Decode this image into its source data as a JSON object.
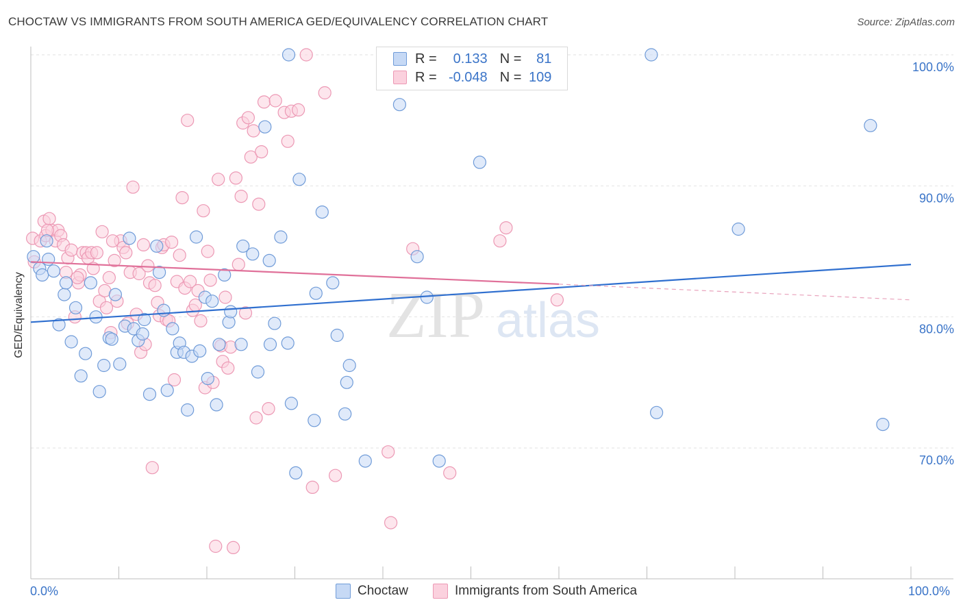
{
  "title": "CHOCTAW VS IMMIGRANTS FROM SOUTH AMERICA GED/EQUIVALENCY CORRELATION CHART",
  "source": "Source: ZipAtlas.com",
  "watermark": {
    "zip": "ZIP",
    "atlas": "atlas"
  },
  "legend": {
    "r_label": "R =",
    "n_label": "N =",
    "rows": [
      {
        "name": "Choctaw",
        "r": "0.133",
        "n": "81",
        "color": "#6f9bd8"
      },
      {
        "name": "Immigrants from South America",
        "r": "-0.048",
        "n": "109",
        "color": "#ec98b4"
      }
    ]
  },
  "chart_data": {
    "type": "scatter",
    "title": "CHOCTAW VS IMMIGRANTS FROM SOUTH AMERICA GED/EQUIVALENCY CORRELATION CHART",
    "xlabel": "",
    "ylabel": "GED/Equivalency",
    "xlim": [
      0,
      100
    ],
    "ylim": [
      60,
      101
    ],
    "x_tick_labels": [
      "0.0%",
      "100.0%"
    ],
    "y_ticks": [
      70,
      80,
      90,
      100
    ],
    "y_tick_labels": [
      "70.0%",
      "80.0%",
      "90.0%",
      "100.0%"
    ],
    "grid": true,
    "series": [
      {
        "name": "Choctaw",
        "color": "#6f9bd8",
        "fill": "#c6d9f5",
        "trend": {
          "x": [
            0,
            100
          ],
          "y": [
            79.6,
            84.0
          ]
        },
        "points": [
          [
            0.3,
            84.6
          ],
          [
            1.0,
            83.7
          ],
          [
            1.3,
            83.2
          ],
          [
            1.8,
            85.8
          ],
          [
            2.0,
            84.4
          ],
          [
            2.6,
            83.5
          ],
          [
            3.2,
            79.4
          ],
          [
            3.8,
            81.7
          ],
          [
            4.0,
            82.6
          ],
          [
            4.6,
            78.1
          ],
          [
            5.1,
            80.7
          ],
          [
            5.7,
            75.5
          ],
          [
            6.2,
            77.2
          ],
          [
            6.8,
            82.6
          ],
          [
            7.4,
            80.0
          ],
          [
            7.8,
            74.3
          ],
          [
            8.3,
            76.3
          ],
          [
            8.9,
            78.4
          ],
          [
            9.2,
            78.3
          ],
          [
            9.6,
            81.7
          ],
          [
            10.1,
            76.4
          ],
          [
            10.7,
            79.3
          ],
          [
            11.2,
            86.0
          ],
          [
            11.7,
            79.1
          ],
          [
            12.2,
            78.2
          ],
          [
            12.7,
            78.7
          ],
          [
            12.9,
            79.8
          ],
          [
            13.5,
            74.1
          ],
          [
            14.3,
            85.4
          ],
          [
            14.6,
            83.4
          ],
          [
            15.1,
            80.5
          ],
          [
            15.5,
            74.4
          ],
          [
            16.1,
            79.1
          ],
          [
            16.6,
            77.3
          ],
          [
            16.9,
            78.0
          ],
          [
            17.4,
            77.3
          ],
          [
            17.8,
            72.9
          ],
          [
            18.3,
            77.0
          ],
          [
            18.8,
            86.1
          ],
          [
            19.2,
            77.4
          ],
          [
            19.8,
            81.5
          ],
          [
            20.1,
            75.3
          ],
          [
            20.6,
            81.2
          ],
          [
            21.1,
            73.3
          ],
          [
            21.4,
            77.9
          ],
          [
            22.0,
            83.2
          ],
          [
            22.5,
            79.6
          ],
          [
            22.7,
            80.4
          ],
          [
            23.9,
            77.9
          ],
          [
            24.1,
            85.4
          ],
          [
            25.2,
            84.8
          ],
          [
            25.8,
            75.8
          ],
          [
            26.6,
            94.5
          ],
          [
            27.1,
            84.3
          ],
          [
            27.7,
            79.5
          ],
          [
            27.2,
            77.9
          ],
          [
            28.4,
            86.1
          ],
          [
            29.2,
            78.0
          ],
          [
            29.3,
            100.0
          ],
          [
            29.6,
            73.4
          ],
          [
            30.1,
            68.1
          ],
          [
            30.5,
            90.5
          ],
          [
            32.2,
            72.1
          ],
          [
            32.4,
            81.8
          ],
          [
            33.1,
            88.0
          ],
          [
            34.3,
            82.6
          ],
          [
            34.8,
            78.6
          ],
          [
            35.7,
            72.6
          ],
          [
            35.9,
            75.0
          ],
          [
            36.2,
            76.3
          ],
          [
            38.0,
            69.0
          ],
          [
            43.9,
            84.6
          ],
          [
            45.0,
            81.5
          ],
          [
            46.4,
            69.0
          ],
          [
            51.0,
            91.8
          ],
          [
            71.1,
            72.7
          ],
          [
            80.4,
            86.7
          ],
          [
            95.4,
            94.6
          ],
          [
            96.8,
            71.8
          ],
          [
            70.5,
            100.0
          ],
          [
            41.9,
            96.2
          ]
        ]
      },
      {
        "name": "Immigrants from South America",
        "color": "#ec98b4",
        "fill": "#fbd1de",
        "trend": {
          "x": [
            0,
            60
          ],
          "y": [
            84.2,
            82.5
          ]
        },
        "trend_dashed": {
          "x": [
            60,
            100
          ],
          "y": [
            82.5,
            81.3
          ]
        },
        "points": [
          [
            0.2,
            86.0
          ],
          [
            0.4,
            84.2
          ],
          [
            1.1,
            85.8
          ],
          [
            1.5,
            87.3
          ],
          [
            1.7,
            86.2
          ],
          [
            2.1,
            87.5
          ],
          [
            2.4,
            86.6
          ],
          [
            2.8,
            85.8
          ],
          [
            3.1,
            86.6
          ],
          [
            3.4,
            86.2
          ],
          [
            3.7,
            85.5
          ],
          [
            4.0,
            83.4
          ],
          [
            4.2,
            84.5
          ],
          [
            4.6,
            85.1
          ],
          [
            5.0,
            80.0
          ],
          [
            5.4,
            82.6
          ],
          [
            5.6,
            83.2
          ],
          [
            5.9,
            84.9
          ],
          [
            6.3,
            84.9
          ],
          [
            6.5,
            84.5
          ],
          [
            6.9,
            84.9
          ],
          [
            7.1,
            83.7
          ],
          [
            7.5,
            84.9
          ],
          [
            7.8,
            81.2
          ],
          [
            8.1,
            86.5
          ],
          [
            8.4,
            82.0
          ],
          [
            8.6,
            80.7
          ],
          [
            8.9,
            83.0
          ],
          [
            9.1,
            78.8
          ],
          [
            9.5,
            84.3
          ],
          [
            9.8,
            81.2
          ],
          [
            10.2,
            85.8
          ],
          [
            10.5,
            85.3
          ],
          [
            10.8,
            84.9
          ],
          [
            11.0,
            79.5
          ],
          [
            11.3,
            83.4
          ],
          [
            11.6,
            89.9
          ],
          [
            12.0,
            80.2
          ],
          [
            12.3,
            83.3
          ],
          [
            12.5,
            77.3
          ],
          [
            12.8,
            85.5
          ],
          [
            13.0,
            77.9
          ],
          [
            13.3,
            83.9
          ],
          [
            13.5,
            82.6
          ],
          [
            13.8,
            68.5
          ],
          [
            14.1,
            82.4
          ],
          [
            14.4,
            81.1
          ],
          [
            14.6,
            80.1
          ],
          [
            14.9,
            85.3
          ],
          [
            15.1,
            85.5
          ],
          [
            15.4,
            79.8
          ],
          [
            15.7,
            79.7
          ],
          [
            16.0,
            85.7
          ],
          [
            16.3,
            75.2
          ],
          [
            16.6,
            82.7
          ],
          [
            16.9,
            84.7
          ],
          [
            17.2,
            89.1
          ],
          [
            17.5,
            82.2
          ],
          [
            17.8,
            95.0
          ],
          [
            18.1,
            82.7
          ],
          [
            18.4,
            80.5
          ],
          [
            18.7,
            80.9
          ],
          [
            19.0,
            82.0
          ],
          [
            19.3,
            79.7
          ],
          [
            19.6,
            88.1
          ],
          [
            19.8,
            74.6
          ],
          [
            20.1,
            85.0
          ],
          [
            20.4,
            82.8
          ],
          [
            20.7,
            75.0
          ],
          [
            21.0,
            62.5
          ],
          [
            21.3,
            90.5
          ],
          [
            21.6,
            77.8
          ],
          [
            21.8,
            76.6
          ],
          [
            22.1,
            81.5
          ],
          [
            22.4,
            76.1
          ],
          [
            22.7,
            77.7
          ],
          [
            23.0,
            62.4
          ],
          [
            23.3,
            90.6
          ],
          [
            23.6,
            84.0
          ],
          [
            23.9,
            89.2
          ],
          [
            24.1,
            94.8
          ],
          [
            24.4,
            80.3
          ],
          [
            24.7,
            95.2
          ],
          [
            25.0,
            92.2
          ],
          [
            25.3,
            94.2
          ],
          [
            25.6,
            72.3
          ],
          [
            25.9,
            88.6
          ],
          [
            26.2,
            92.6
          ],
          [
            26.5,
            96.4
          ],
          [
            27.0,
            73.0
          ],
          [
            27.8,
            96.5
          ],
          [
            28.8,
            95.6
          ],
          [
            29.2,
            93.4
          ],
          [
            29.6,
            95.7
          ],
          [
            30.4,
            95.8
          ],
          [
            31.3,
            100.0
          ],
          [
            32.0,
            67.0
          ],
          [
            33.4,
            97.1
          ],
          [
            34.6,
            67.9
          ],
          [
            40.6,
            69.7
          ],
          [
            40.9,
            64.3
          ],
          [
            43.4,
            85.2
          ],
          [
            47.6,
            68.1
          ],
          [
            53.3,
            85.8
          ],
          [
            54.0,
            86.8
          ],
          [
            59.8,
            81.3
          ],
          [
            1.9,
            86.6
          ],
          [
            5.3,
            83.0
          ],
          [
            9.3,
            85.8
          ]
        ]
      }
    ]
  }
}
